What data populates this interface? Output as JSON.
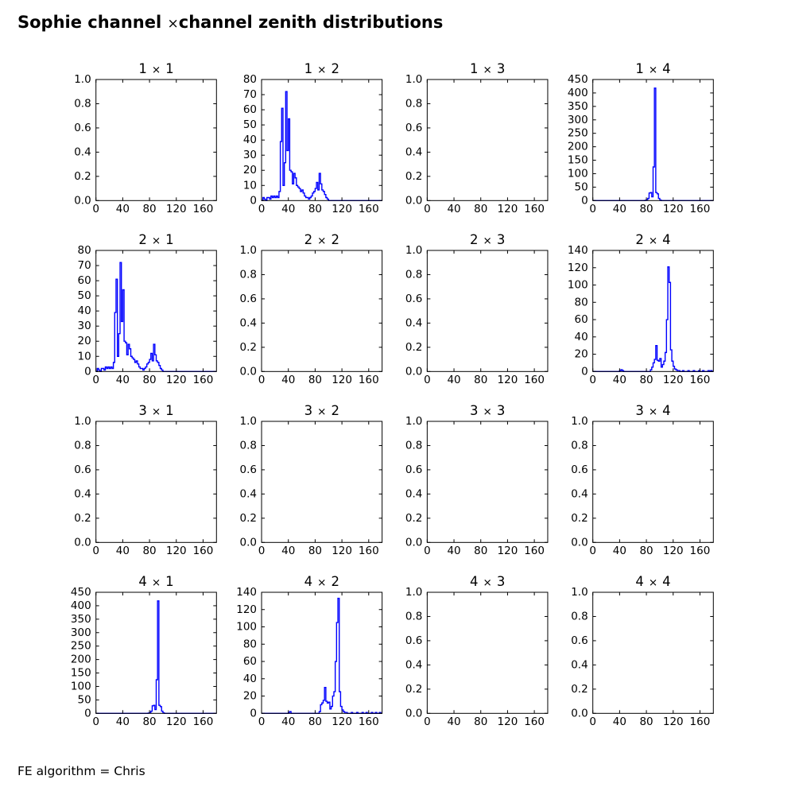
{
  "chart_data": {
    "type": "bar",
    "subtype": "step-histogram-grid",
    "figure_title": {
      "prefix": "Sophie channel ",
      "times": "×",
      "suffix": "channel zenith distributions"
    },
    "footer": "FE algorithm = Chris",
    "line_color": "#0000ff",
    "axis_color": "#000000",
    "xlim": [
      0,
      180
    ],
    "xticks": [
      0,
      40,
      80,
      120,
      160
    ],
    "xtick_labels": [
      "0",
      "40",
      "80",
      "120",
      "160"
    ],
    "bin_width": 2,
    "yaxes": {
      "unit": {
        "ymax": 1,
        "values": [
          0,
          0.2,
          0.4,
          0.6,
          0.8,
          1.0
        ],
        "labels": [
          "0.0",
          "0.2",
          "0.4",
          "0.6",
          "0.8",
          "1.0"
        ]
      },
      "c80": {
        "ymax": 80,
        "values": [
          0,
          10,
          20,
          30,
          40,
          50,
          60,
          70,
          80
        ],
        "labels": [
          "0",
          "10",
          "20",
          "30",
          "40",
          "50",
          "60",
          "70",
          "80"
        ]
      },
      "c140": {
        "ymax": 140,
        "values": [
          0,
          20,
          40,
          60,
          80,
          100,
          120,
          140
        ],
        "labels": [
          "0",
          "20",
          "40",
          "60",
          "80",
          "100",
          "120",
          "140"
        ]
      },
      "c450": {
        "ymax": 450,
        "values": [
          0,
          50,
          100,
          150,
          200,
          250,
          300,
          350,
          400,
          450
        ],
        "labels": [
          "0",
          "50",
          "100",
          "150",
          "200",
          "250",
          "300",
          "350",
          "400",
          "450"
        ]
      }
    },
    "histograms": {
      "A": {
        "start": 0,
        "counts": [
          0,
          2,
          1,
          0,
          2,
          2,
          1,
          3,
          2,
          3,
          2,
          3,
          2,
          6,
          39,
          61,
          10,
          25,
          72,
          33,
          54,
          20,
          19,
          11,
          18,
          15,
          10,
          9,
          8,
          6,
          7,
          5,
          3,
          2,
          2,
          1,
          2,
          3,
          5,
          6,
          8,
          12,
          7,
          18,
          11,
          7,
          6,
          4,
          2,
          1
        ]
      },
      "B": {
        "start": 78,
        "counts": [
          1,
          3,
          8,
          28,
          30,
          14,
          125,
          418,
          30,
          25,
          8,
          2
        ]
      },
      "C": {
        "start": 40,
        "counts": [
          1,
          2,
          1,
          0,
          0,
          0,
          0,
          0,
          0,
          0,
          0,
          0,
          0,
          0,
          0,
          0,
          0,
          0,
          0,
          0,
          0,
          0,
          0,
          2,
          5,
          10,
          14,
          30,
          13,
          12,
          15,
          5,
          8,
          12,
          22,
          60,
          121,
          103,
          25,
          12,
          6,
          3,
          2,
          1,
          1,
          0,
          0,
          1,
          0,
          0,
          0,
          1,
          0,
          0,
          0,
          1,
          0,
          0,
          0,
          1,
          0,
          0,
          1,
          0,
          0,
          0,
          1,
          0,
          1,
          0
        ]
      },
      "D": {
        "start": 40,
        "counts": [
          1,
          2,
          0,
          0,
          0,
          0,
          0,
          0,
          0,
          0,
          0,
          0,
          0,
          0,
          0,
          0,
          0,
          0,
          0,
          0,
          0,
          0,
          0,
          2,
          10,
          12,
          15,
          30,
          14,
          12,
          13,
          5,
          8,
          20,
          25,
          60,
          105,
          133,
          25,
          8,
          4,
          2,
          1,
          1,
          0,
          0,
          0,
          1,
          0,
          0,
          0,
          1,
          0,
          0,
          0,
          1,
          0,
          0,
          1,
          0,
          0,
          0,
          1,
          0,
          0,
          1,
          0,
          0,
          1,
          0
        ]
      }
    },
    "subplots": [
      {
        "title": "1 × 1",
        "yaxis": "unit",
        "hist": null
      },
      {
        "title": "1 × 2",
        "yaxis": "c80",
        "hist": "A"
      },
      {
        "title": "1 × 3",
        "yaxis": "unit",
        "hist": null
      },
      {
        "title": "1 × 4",
        "yaxis": "c450",
        "hist": "B"
      },
      {
        "title": "2 × 1",
        "yaxis": "c80",
        "hist": "A"
      },
      {
        "title": "2 × 2",
        "yaxis": "unit",
        "hist": null
      },
      {
        "title": "2 × 3",
        "yaxis": "unit",
        "hist": null
      },
      {
        "title": "2 × 4",
        "yaxis": "c140",
        "hist": "C"
      },
      {
        "title": "3 × 1",
        "yaxis": "unit",
        "hist": null
      },
      {
        "title": "3 × 2",
        "yaxis": "unit",
        "hist": null
      },
      {
        "title": "3 × 3",
        "yaxis": "unit",
        "hist": null
      },
      {
        "title": "3 × 4",
        "yaxis": "unit",
        "hist": null
      },
      {
        "title": "4 × 1",
        "yaxis": "c450",
        "hist": "B"
      },
      {
        "title": "4 × 2",
        "yaxis": "c140",
        "hist": "D"
      },
      {
        "title": "4 × 3",
        "yaxis": "unit",
        "hist": null
      },
      {
        "title": "4 × 4",
        "yaxis": "unit",
        "hist": null
      }
    ]
  }
}
